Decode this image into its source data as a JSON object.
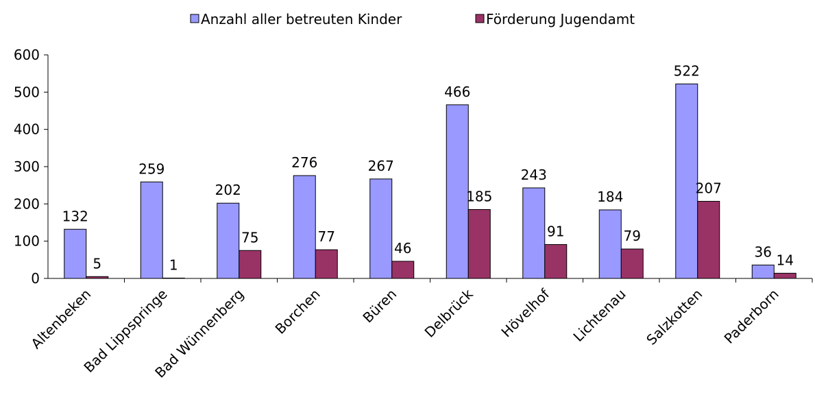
{
  "chart_data": {
    "type": "bar",
    "categories": [
      "Altenbeken",
      "Bad Lippspringe",
      "Bad Wünnenberg",
      "Borchen",
      "Büren",
      "Delbrück",
      "Hövelhof",
      "Lichtenau",
      "Salzkotten",
      "Paderborn"
    ],
    "series": [
      {
        "name": "Anzahl aller betreuten Kinder",
        "color": "#9999ff",
        "values": [
          132,
          259,
          202,
          276,
          267,
          466,
          243,
          184,
          522,
          36
        ]
      },
      {
        "name": "Förderung Jugendamt",
        "color": "#993366",
        "values": [
          5,
          1,
          75,
          77,
          46,
          185,
          91,
          79,
          207,
          14
        ]
      }
    ],
    "ylim": [
      0,
      600
    ],
    "yticks": [
      0,
      100,
      200,
      300,
      400,
      500,
      600
    ],
    "grid": false,
    "legend": "top"
  }
}
